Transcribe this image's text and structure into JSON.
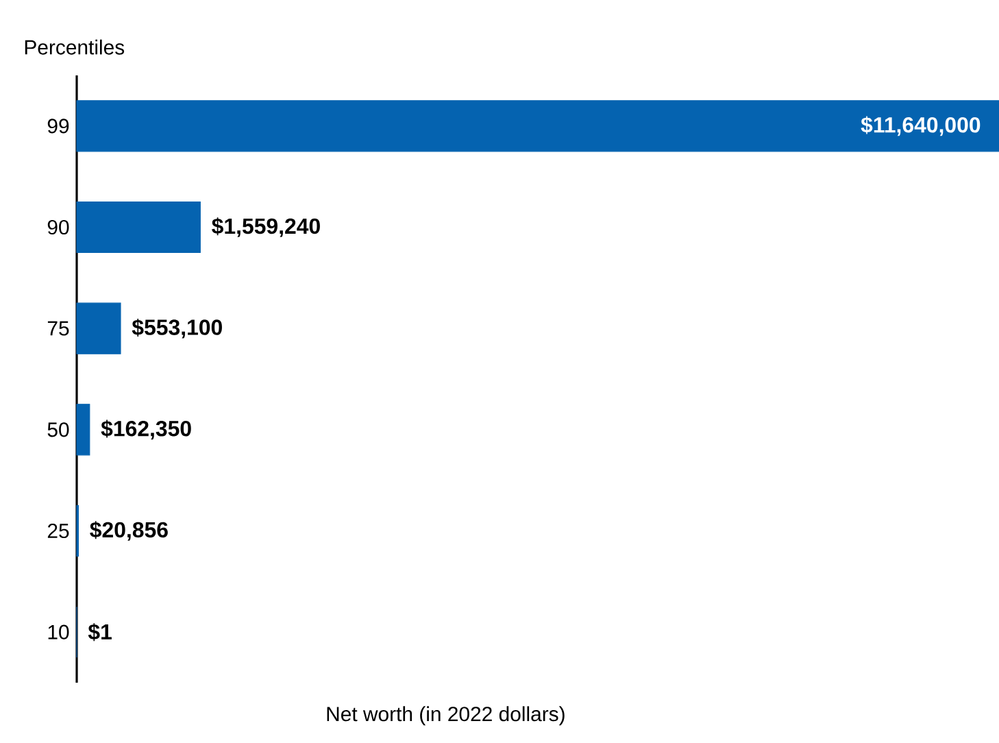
{
  "chart_data": {
    "type": "bar",
    "orientation": "horizontal",
    "ylabel": "Percentiles",
    "xlabel": "Net worth (in 2022 dollars)",
    "categories": [
      "99",
      "90",
      "75",
      "50",
      "25",
      "10"
    ],
    "values": [
      11640000,
      1559240,
      553100,
      162350,
      20856,
      1
    ],
    "value_labels": [
      "$11,640,000",
      "$1,559,240",
      "$553,100",
      "$162,350",
      "$20,856",
      "$1"
    ],
    "color": "#0563b0",
    "xlim": [
      0,
      11640000
    ]
  }
}
